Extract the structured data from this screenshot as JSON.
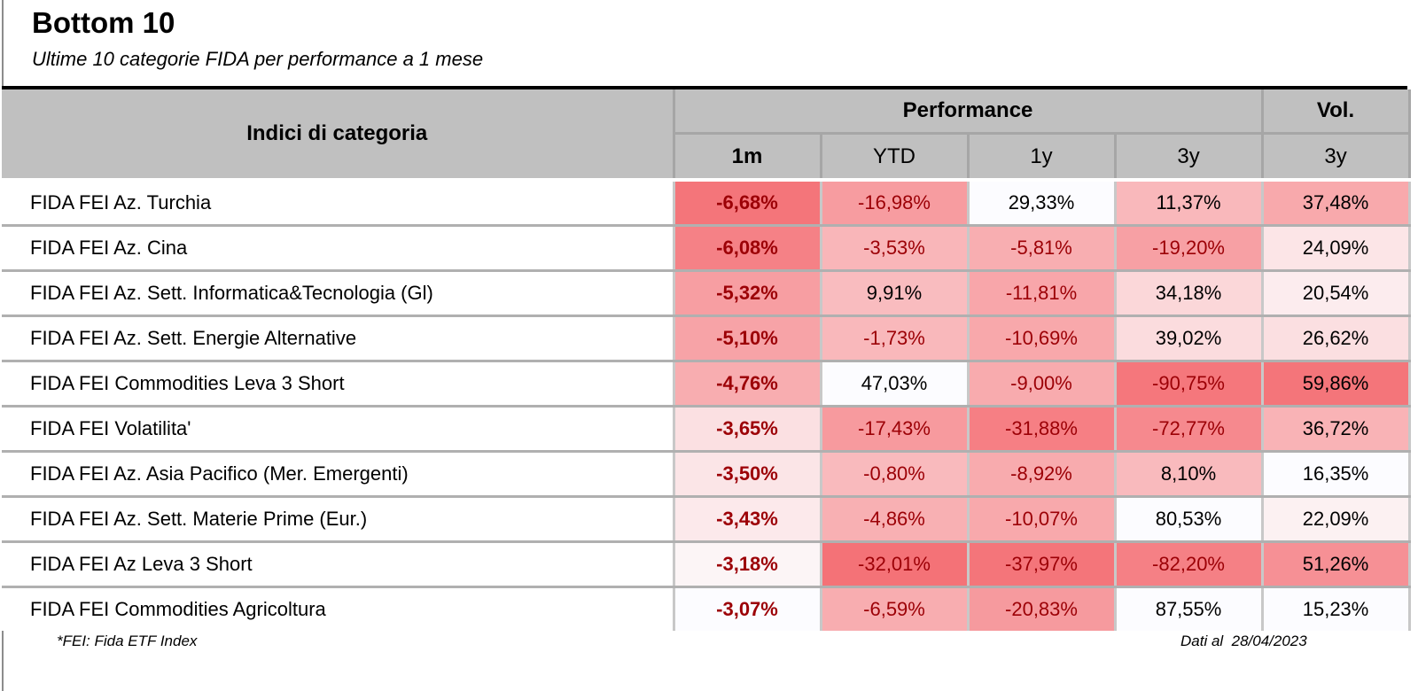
{
  "title": "Bottom 10",
  "subtitle": "Ultime 10 categorie FIDA per performance a 1 mese",
  "headers": {
    "name": "Indici di categoria",
    "performance": "Performance",
    "vol": "Vol.",
    "sub": [
      "1m",
      "YTD",
      "1y",
      "3y",
      "3y"
    ]
  },
  "rows": [
    {
      "name": "FIDA FEI Az. Turchia",
      "values": [
        "-6,68%",
        "-16,98%",
        "29,33%",
        "11,37%",
        "37,48%"
      ],
      "bg": [
        "#f4757a",
        "#f79ca0",
        "#fcfcff",
        "#f9b8bb",
        "#f8a9ac"
      ]
    },
    {
      "name": "FIDA FEI Az. Cina",
      "values": [
        "-6,08%",
        "-3,53%",
        "-5,81%",
        "-19,20%",
        "24,09%"
      ],
      "bg": [
        "#f58186",
        "#f9b6b9",
        "#f8aeb1",
        "#f7a0a4",
        "#fce5e7"
      ]
    },
    {
      "name": "FIDA FEI Az. Sett. Informatica&Tecnologia (Gl)",
      "values": [
        "-5,32%",
        "9,91%",
        "-11,81%",
        "34,18%",
        "20,54%"
      ],
      "bg": [
        "#f79ea2",
        "#f9bcbf",
        "#f8a6aa",
        "#fbd7d9",
        "#fcecee"
      ]
    },
    {
      "name": "FIDA FEI Az. Sett. Energie Alternative",
      "values": [
        "-5,10%",
        "-1,73%",
        "-10,69%",
        "39,02%",
        "26,62%"
      ],
      "bg": [
        "#f7a3a7",
        "#f9b8bb",
        "#f8a8ab",
        "#fbdcde",
        "#fbdfe1"
      ]
    },
    {
      "name": "FIDA FEI Commodities Leva 3 Short",
      "values": [
        "-4,76%",
        "47,03%",
        "-9,00%",
        "-90,75%",
        "59,86%"
      ],
      "bg": [
        "#f8adb0",
        "#fcfcff",
        "#f8abae",
        "#f5777c",
        "#f4757a"
      ]
    },
    {
      "name": "FIDA FEI Volatilita'",
      "values": [
        "-3,65%",
        "-17,43%",
        "-31,88%",
        "-72,77%",
        "36,72%"
      ],
      "bg": [
        "#fbe0e2",
        "#f79a9e",
        "#f67f84",
        "#f6898e",
        "#f9b3b6"
      ]
    },
    {
      "name": "FIDA FEI Az. Asia Pacifico (Mer. Emergenti)",
      "values": [
        "-3,50%",
        "-0,80%",
        "-8,92%",
        "8,10%",
        "16,35%"
      ],
      "bg": [
        "#fbe5e7",
        "#f9babd",
        "#f8abae",
        "#f9babd",
        "#fcfcff"
      ]
    },
    {
      "name": "FIDA FEI Az. Sett. Materie Prime (Eur.)",
      "values": [
        "-3,43%",
        "-4,86%",
        "-10,07%",
        "80,53%",
        "22,09%"
      ],
      "bg": [
        "#fce9eb",
        "#f8b0b3",
        "#f8a9ac",
        "#fcfcff",
        "#fcf1f2"
      ]
    },
    {
      "name": "FIDA FEI Az Leva 3 Short",
      "values": [
        "-3,18%",
        "-32,01%",
        "-37,97%",
        "-82,20%",
        "51,26%"
      ],
      "bg": [
        "#fcf5f6",
        "#f47277",
        "#f4757a",
        "#f58085",
        "#f69095"
      ]
    },
    {
      "name": "FIDA FEI Commodities Agricoltura",
      "values": [
        "-3,07%",
        "-6,59%",
        "-20,83%",
        "87,55%",
        "15,23%"
      ],
      "bg": [
        "#fcfcff",
        "#f8adb0",
        "#f69a9e",
        "#fcfcff",
        "#fcfcff"
      ]
    }
  ],
  "footnote": "*FEI: Fida ETF Index",
  "dateline": "Dati al  28/04/2023"
}
